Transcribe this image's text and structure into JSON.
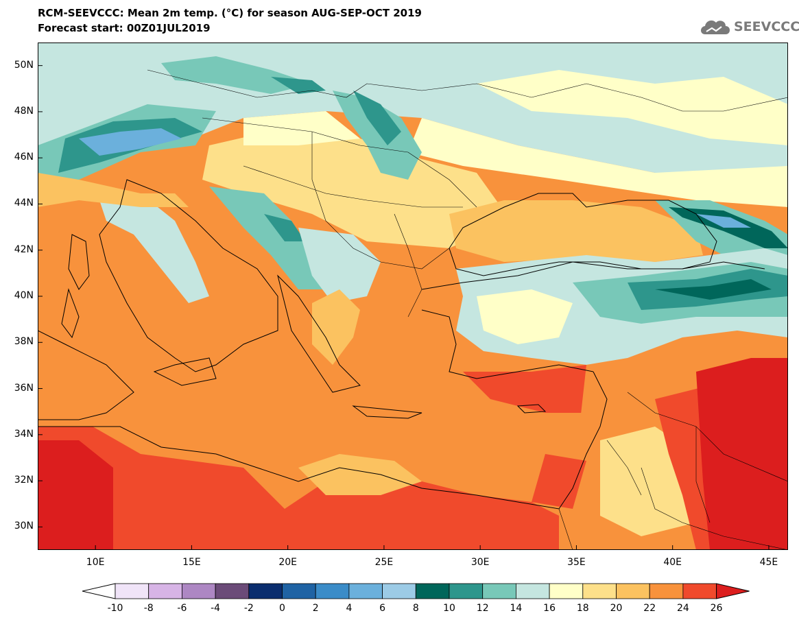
{
  "header": {
    "line1": "RCM-SEEVCCC: Mean 2m temp. (°C) for season AUG-SEP-OCT 2019",
    "line2": "Forecast start: 00Z01JUL2019"
  },
  "logo": {
    "text": "SEEVCCC",
    "icon": "cloud-icon"
  },
  "map": {
    "lon_range": [
      7,
      46
    ],
    "lat_range": [
      29,
      51
    ],
    "lat_ticks": [
      {
        "value": 50,
        "label": "50N"
      },
      {
        "value": 48,
        "label": "48N"
      },
      {
        "value": 46,
        "label": "46N"
      },
      {
        "value": 44,
        "label": "44N"
      },
      {
        "value": 42,
        "label": "42N"
      },
      {
        "value": 40,
        "label": "40N"
      },
      {
        "value": 38,
        "label": "38N"
      },
      {
        "value": 36,
        "label": "36N"
      },
      {
        "value": 34,
        "label": "34N"
      },
      {
        "value": 32,
        "label": "32N"
      },
      {
        "value": 30,
        "label": "30N"
      }
    ],
    "lon_ticks": [
      {
        "value": 10,
        "label": "10E"
      },
      {
        "value": 15,
        "label": "15E"
      },
      {
        "value": 20,
        "label": "20E"
      },
      {
        "value": 25,
        "label": "25E"
      },
      {
        "value": 30,
        "label": "30E"
      },
      {
        "value": 35,
        "label": "35E"
      },
      {
        "value": 40,
        "label": "40E"
      },
      {
        "value": 45,
        "label": "45E"
      }
    ]
  },
  "colorbar": {
    "labels": [
      "-10",
      "-8",
      "-6",
      "-4",
      "-2",
      "0",
      "2",
      "4",
      "6",
      "8",
      "10",
      "12",
      "14",
      "16",
      "18",
      "20",
      "22",
      "24",
      "26"
    ],
    "colors": [
      "#f0e4f8",
      "#d7b4e6",
      "#ad87c3",
      "#6b4b78",
      "#0a2d6e",
      "#1f63a4",
      "#3b8cc8",
      "#6bb0dc",
      "#9ccbe6",
      "#00665a",
      "#2e968c",
      "#78c8b8",
      "#c5e6e0",
      "#ffffc8",
      "#fde08a",
      "#fbc260",
      "#f8923c",
      "#f04a2c"
    ],
    "low_arrow_color": "#ffffff",
    "high_arrow_color": "#dc1e1e"
  }
}
